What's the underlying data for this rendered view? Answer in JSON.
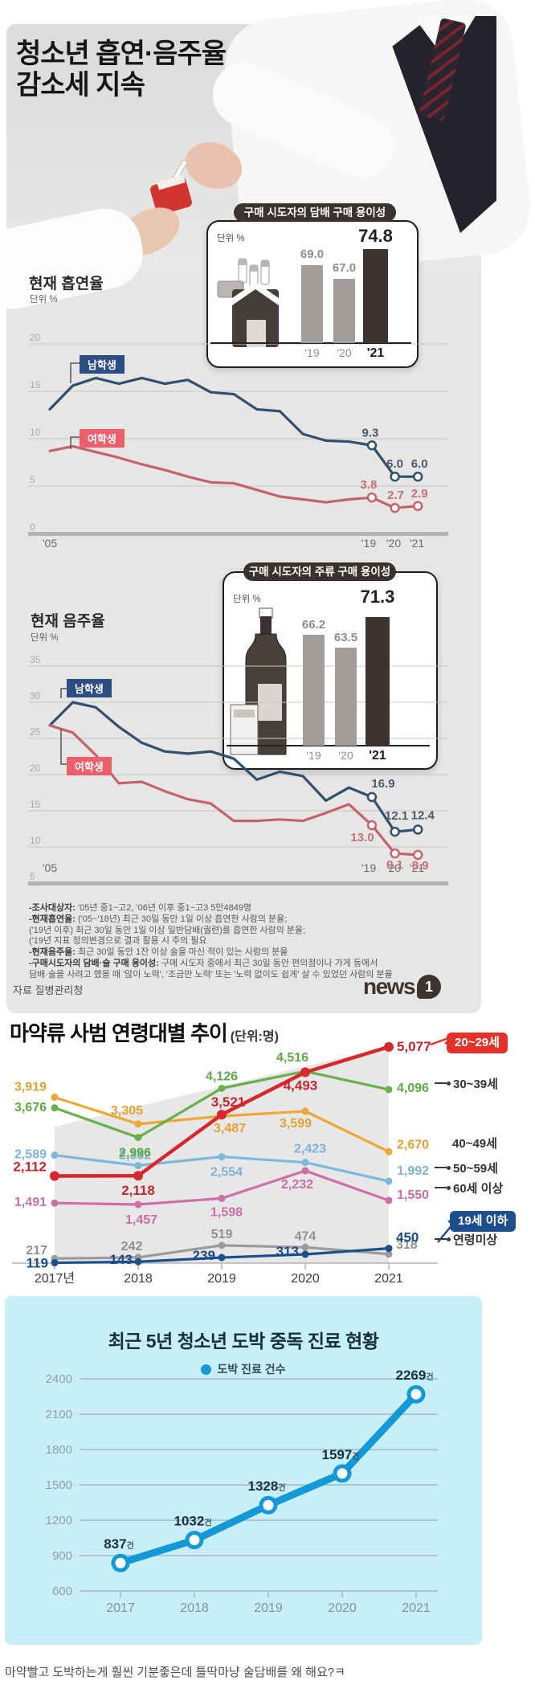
{
  "infographic": {
    "title_lines": [
      "청소년 흡연·음주율",
      "감소세 지속"
    ],
    "source_label": "자료 질병관리청",
    "logo_text": "news",
    "logo_badge": "1",
    "footnotes": [
      {
        "b": "-조사대상자:",
        "t": " '05년 중1~고2, '06년 이후 중1~고3 5만4849명"
      },
      {
        "b": "-현재흡연율:",
        "t": " ('05~'18년) 최근 30일 동안 1일 이상 흡연한 사람의 분율;"
      },
      {
        "b": "",
        "t": "('19년 이후) 최근 30일 동안 1일 이상 일반담배(궐련)를 흡연한 사람의 분율;"
      },
      {
        "b": "",
        "t": "('19년 지표 정의변경으로 결과 활용 시 주의 필요"
      },
      {
        "b": "-현재음주율:",
        "t": " 최근 30일 동안 1잔 이상 술을 마신 적이 있는 사람의 분율"
      },
      {
        "b": "-구매시도자의 담배·술 구매 용이성:",
        "t": " 구매 시도자 중에서 최근 30일 동안 편의점이나 가게 등에서"
      },
      {
        "b": "",
        "t": "담배·술을 사려고 했을 때 '많이 노력', '조금만 노력' 또는 '노력 없이도 쉽게' 살 수 있었던 사람의 분율"
      }
    ]
  },
  "comment": "마약빨고 도박하는게 훨씬 기분좋은데 틀딱마냥 술담배를 왜 해요?ㅋ",
  "chart_data": [
    {
      "id": "smoking_trend",
      "type": "line",
      "title": "현재 흡연율",
      "unit_label": "단위 %",
      "x_tick_labels": [
        "'05",
        "'19",
        "'20",
        "'21"
      ],
      "years": [
        "'05",
        "'06",
        "'07",
        "'08",
        "'09",
        "'10",
        "'11",
        "'12",
        "'13",
        "'14",
        "'15",
        "'16",
        "'17",
        "'18",
        "'19",
        "'20",
        "'21"
      ],
      "ylim": [
        0,
        20
      ],
      "yticks": [
        20,
        15,
        10,
        5,
        0
      ],
      "series": [
        {
          "name": "남학생",
          "color": "#31506e",
          "values": [
            13.1,
            15.6,
            16.4,
            15.8,
            16.4,
            15.8,
            16.2,
            14.9,
            14.7,
            13.1,
            12.9,
            10.5,
            9.8,
            9.7,
            9.3,
            6.0,
            6.0
          ],
          "point_labels": {
            "14": "9.3",
            "15": "6.0",
            "16": "6.0"
          }
        },
        {
          "name": "여학생",
          "color": "#c2636e",
          "values": [
            8.7,
            9.2,
            8.6,
            8.0,
            7.3,
            6.7,
            6.0,
            5.4,
            5.3,
            4.6,
            3.9,
            3.6,
            3.3,
            3.6,
            3.8,
            2.7,
            2.9
          ],
          "point_labels": {
            "14": "3.8",
            "15": "2.7",
            "16": "2.9"
          }
        }
      ]
    },
    {
      "id": "tobacco_purchase_ease",
      "type": "bar",
      "title": "구매 시도자의 담배 구매 용이성",
      "unit_label": "단위 %",
      "categories": [
        "'19",
        "'20",
        "'21"
      ],
      "values": [
        69.0,
        67.0,
        74.8
      ],
      "highlight_index": 2
    },
    {
      "id": "drinking_trend",
      "type": "line",
      "title": "현재 음주율",
      "unit_label": "단위 %",
      "x_tick_labels": [
        "'05",
        "'19",
        "'20",
        "'21"
      ],
      "years": [
        "'05",
        "'06",
        "'07",
        "'08",
        "'09",
        "'10",
        "'11",
        "'12",
        "'13",
        "'14",
        "'15",
        "'16",
        "'17",
        "'18",
        "'19",
        "'20",
        "'21"
      ],
      "ylim": [
        5,
        35
      ],
      "yticks": [
        35,
        30,
        25,
        20,
        15,
        10,
        5
      ],
      "series": [
        {
          "name": "남학생",
          "color": "#31506e",
          "values": [
            26.8,
            30.0,
            29.3,
            26.6,
            24.4,
            23.2,
            22.9,
            23.2,
            22.2,
            19.3,
            20.4,
            19.8,
            16.4,
            18.2,
            16.9,
            12.1,
            12.4
          ],
          "point_labels": {
            "14": "16.9",
            "15": "12.1",
            "16": "12.4"
          }
        },
        {
          "name": "여학생",
          "color": "#c2636e",
          "values": [
            26.8,
            25.8,
            22.7,
            18.8,
            19.0,
            17.7,
            16.6,
            16.0,
            13.6,
            13.6,
            13.8,
            13.6,
            14.7,
            15.9,
            13.0,
            9.1,
            8.9
          ],
          "point_labels": {
            "14": "13.0",
            "15": "9.1",
            "16": "8.9"
          }
        }
      ]
    },
    {
      "id": "alcohol_purchase_ease",
      "type": "bar",
      "title": "구매 시도자의 주류 구매 용이성",
      "unit_label": "단위 %",
      "categories": [
        "'19",
        "'20",
        "'21"
      ],
      "values": [
        66.2,
        63.5,
        71.3
      ],
      "highlight_index": 2
    },
    {
      "id": "drug_offenders_by_age",
      "type": "line",
      "title": "마약류 사범 연령대별 추이",
      "unit_label": "(단위:명)",
      "categories": [
        "2017년",
        "2018",
        "2019",
        "2020",
        "2021"
      ],
      "series": [
        {
          "name": "20~29세",
          "color": "#d7282d",
          "label_style": "badge",
          "values": [
            2112,
            2118,
            3521,
            4493,
            5077
          ]
        },
        {
          "name": "30~39세",
          "color": "#67b04b",
          "values": [
            3676,
            2996,
            4126,
            4516,
            4096
          ]
        },
        {
          "name": "40~49세",
          "color": "#eda735",
          "values": [
            3919,
            3305,
            3487,
            3599,
            2670
          ]
        },
        {
          "name": "50~59세",
          "color": "#7db8dd",
          "values": [
            2589,
            2352,
            2554,
            2423,
            1992
          ]
        },
        {
          "name": "60세 이상",
          "color": "#cf6fa7",
          "values": [
            1491,
            1457,
            1598,
            2232,
            1550
          ]
        },
        {
          "name": "19세 이하",
          "color": "#1c4f8e",
          "label_style": "badge",
          "values": [
            119,
            143,
            239,
            313,
            450
          ]
        },
        {
          "name": "연령미상",
          "color": "#9b9b9b",
          "values": [
            217,
            242,
            519,
            474,
            318
          ]
        }
      ]
    },
    {
      "id": "gambling_treatment",
      "type": "line",
      "title": "최근 5년 청소년 도박 중독 진료 현황",
      "legend": "도박 진료 건수",
      "categories": [
        "2017",
        "2018",
        "2019",
        "2020",
        "2021"
      ],
      "values": [
        837,
        1032,
        1328,
        1597,
        2269
      ],
      "value_suffix": "건",
      "yticks": [
        2400,
        2100,
        1800,
        1500,
        1200,
        900,
        600
      ],
      "ylim": [
        600,
        2400
      ],
      "color": "#1598d6"
    }
  ]
}
